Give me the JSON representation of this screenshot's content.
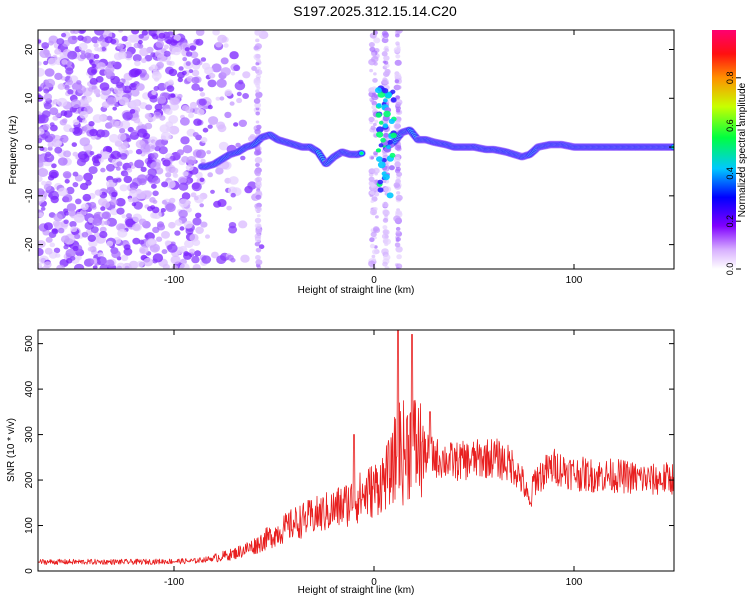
{
  "title": "S197.2025.312.15.14.C20",
  "chart_data": [
    {
      "type": "heatmap",
      "xlabel": "Height of straight line (km)",
      "ylabel": "Frequency (Hz)",
      "xlim": [
        -168,
        150
      ],
      "ylim": [
        -25,
        24
      ],
      "x_ticks": [
        -100,
        0,
        100
      ],
      "y_ticks": [
        -20,
        -10,
        0,
        10,
        20
      ],
      "x_tick_labels": [
        "-100",
        "0",
        "100"
      ],
      "y_tick_labels": [
        "-20",
        "-10",
        "0",
        "10",
        "20"
      ],
      "colorbar": {
        "label": "Normalized spectral amplitude",
        "range": [
          0.0,
          1.0
        ],
        "ticks": [
          0.0,
          0.2,
          0.4,
          0.6,
          0.8
        ],
        "tick_labels": [
          "0.0",
          "0.2",
          "0.4",
          "0.6",
          "0.8"
        ],
        "colors": [
          "#ffffff",
          "#b060ff",
          "#3000ff",
          "#00c0ff",
          "#00ff60",
          "#c0ff00",
          "#ff8000",
          "#ff0040"
        ]
      },
      "ridge": {
        "x": [
          -84,
          -80,
          -76,
          -72,
          -68,
          -64,
          -60,
          -56,
          -52,
          -48,
          -44,
          -40,
          -36,
          -32,
          -28,
          -24,
          -20,
          -16,
          -12,
          -8,
          -4,
          2,
          6,
          10,
          14,
          18,
          22,
          26,
          30,
          36,
          40,
          46,
          50,
          56,
          60,
          66,
          70,
          74,
          78,
          82,
          88,
          94,
          100,
          106,
          112,
          118,
          124,
          130,
          136,
          142,
          148
        ],
        "y": [
          -4,
          -3.5,
          -2.5,
          -1.5,
          -1,
          0,
          0.5,
          2,
          2.5,
          1.5,
          1,
          0.5,
          0,
          0,
          -1,
          -3.5,
          -2,
          -1,
          -1.5,
          -1.5,
          -1,
          -2,
          0,
          1,
          3,
          3.5,
          1.5,
          1.5,
          1,
          0.5,
          0,
          0,
          0,
          -0.5,
          -0.5,
          -1,
          -1.5,
          -2,
          -1.5,
          0,
          0.5,
          0.5,
          0,
          0,
          0,
          0,
          0,
          0,
          0,
          0,
          0
        ]
      }
    },
    {
      "type": "line",
      "xlabel": "Height of straight line (km)",
      "ylabel": "SNR (10 * v/v)",
      "xlim": [
        -168,
        150
      ],
      "ylim": [
        0,
        530
      ],
      "x_ticks": [
        -100,
        0,
        100
      ],
      "y_ticks": [
        0,
        100,
        200,
        300,
        400,
        500
      ],
      "x_tick_labels": [
        "-100",
        "0",
        "100"
      ],
      "y_tick_labels": [
        "0",
        "100",
        "200",
        "300",
        "400",
        "500"
      ],
      "color": "#e82020",
      "series": [
        {
          "name": "SNR",
          "envelope_x": [
            -168,
            -120,
            -90,
            -80,
            -70,
            -60,
            -50,
            -40,
            -30,
            -20,
            -10,
            0,
            5,
            10,
            12,
            15,
            18,
            20,
            25,
            30,
            40,
            50,
            60,
            70,
            75,
            78,
            80,
            90,
            100,
            110,
            120,
            130,
            140,
            150
          ],
          "envelope_y": [
            20,
            20,
            22,
            28,
            38,
            55,
            80,
            105,
            120,
            135,
            155,
            180,
            200,
            230,
            270,
            260,
            280,
            275,
            260,
            250,
            240,
            245,
            250,
            230,
            190,
            140,
            200,
            230,
            215,
            210,
            210,
            205,
            200,
            205
          ],
          "spikes_x": [
            12,
            19,
            -10,
            28
          ],
          "spikes_y": [
            530,
            520,
            300,
            350
          ]
        }
      ]
    }
  ]
}
